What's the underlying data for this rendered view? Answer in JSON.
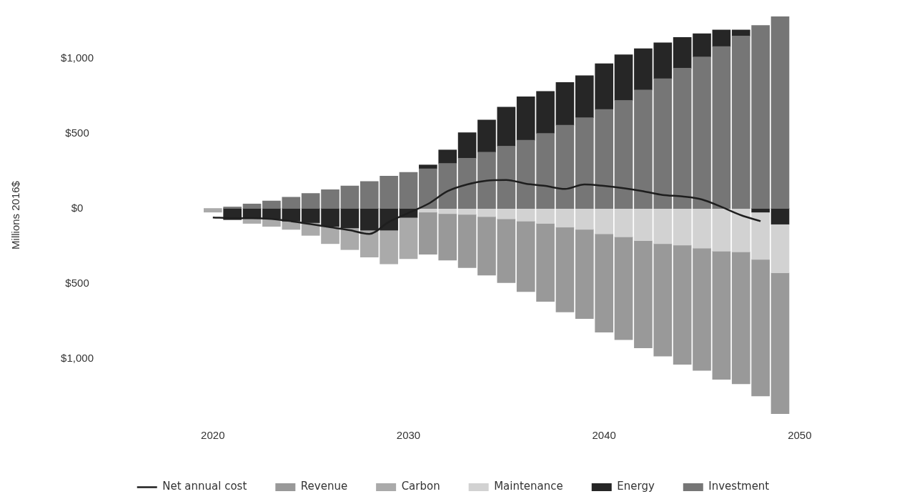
{
  "chart_data": {
    "type": "bar",
    "stacked": true,
    "ylabel": "Millions 2016$",
    "x": [
      2020,
      2021,
      2022,
      2023,
      2024,
      2025,
      2026,
      2027,
      2028,
      2029,
      2030,
      2031,
      2032,
      2033,
      2034,
      2035,
      2036,
      2037,
      2038,
      2039,
      2040,
      2041,
      2042,
      2043,
      2044,
      2045,
      2046,
      2047,
      2048,
      2049
    ],
    "xlim": [
      2019.5,
      2050
    ],
    "xticks": [
      2020,
      2030,
      2040,
      2050
    ],
    "ylim": [
      -1370,
      1280
    ],
    "yticks": [
      {
        "value": 1000,
        "label": "$1,000"
      },
      {
        "value": 500,
        "label": "$500"
      },
      {
        "value": 0,
        "label": "$0"
      },
      {
        "value": -500,
        "label": "$500"
      },
      {
        "value": -1000,
        "label": "$1,000"
      }
    ],
    "grid": false,
    "legend": "bottom",
    "marker": "none",
    "line_style": "solid",
    "series": [
      {
        "name": "Investment",
        "color": "#767676",
        "values": [
          null,
          10,
          30,
          50,
          75,
          100,
          125,
          150,
          180,
          215,
          240,
          265,
          300,
          335,
          375,
          415,
          455,
          500,
          555,
          605,
          660,
          720,
          790,
          865,
          935,
          1010,
          1080,
          1150,
          1220,
          1280
        ]
      },
      {
        "name": "Energy",
        "color": "#262626",
        "values": [
          null,
          -75,
          -65,
          -70,
          -85,
          -95,
          -120,
          -130,
          -145,
          -145,
          -60,
          25,
          90,
          170,
          215,
          260,
          290,
          280,
          285,
          280,
          305,
          305,
          275,
          240,
          205,
          155,
          110,
          40,
          -25,
          -105
        ]
      },
      {
        "name": "Maintenance",
        "color": "#d2d2d2",
        "values": [
          null,
          null,
          null,
          null,
          null,
          null,
          null,
          null,
          null,
          null,
          null,
          -25,
          -35,
          -40,
          -55,
          -70,
          -85,
          -100,
          -125,
          -140,
          -170,
          -190,
          -215,
          -235,
          -245,
          -265,
          -285,
          -290,
          -315,
          -325
        ]
      },
      {
        "name": "Carbon",
        "color": "#aaaaaa",
        "values": [
          -25,
          null,
          -35,
          -50,
          -55,
          -85,
          -115,
          -145,
          -180,
          -225,
          -275,
          null,
          null,
          null,
          null,
          null,
          null,
          null,
          null,
          null,
          null,
          null,
          null,
          null,
          null,
          null,
          null,
          null,
          null,
          null
        ]
      },
      {
        "name": "Revenue",
        "color": "#999999",
        "values": [
          null,
          null,
          null,
          null,
          null,
          null,
          null,
          null,
          null,
          null,
          null,
          -280,
          -310,
          -355,
          -390,
          -425,
          -470,
          -520,
          -565,
          -595,
          -655,
          -685,
          -715,
          -750,
          -795,
          -815,
          -855,
          -880,
          -910,
          -940
        ]
      },
      {
        "name": "Net annual cost",
        "type": "line",
        "color": "#1e1e1e",
        "values": [
          -60,
          -65,
          -65,
          -70,
          -85,
          -105,
          -125,
          -145,
          -170,
          -90,
          -30,
          30,
          115,
          160,
          185,
          190,
          165,
          150,
          130,
          160,
          150,
          135,
          115,
          90,
          80,
          60,
          10,
          -45,
          -85,
          null
        ]
      }
    ]
  }
}
